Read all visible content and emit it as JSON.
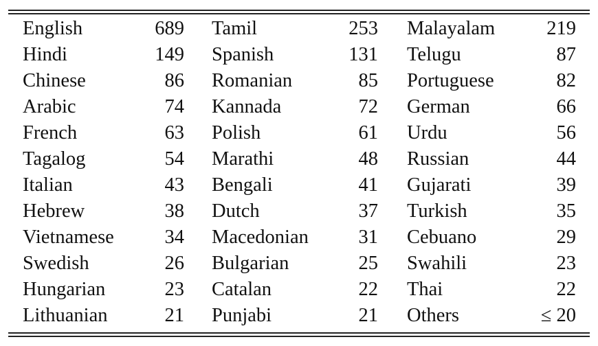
{
  "table": {
    "rows": [
      [
        {
          "lang": "English",
          "count": "689"
        },
        {
          "lang": "Tamil",
          "count": "253"
        },
        {
          "lang": "Malayalam",
          "count": "219"
        }
      ],
      [
        {
          "lang": "Hindi",
          "count": "149"
        },
        {
          "lang": "Spanish",
          "count": "131"
        },
        {
          "lang": "Telugu",
          "count": "87"
        }
      ],
      [
        {
          "lang": "Chinese",
          "count": "86"
        },
        {
          "lang": "Romanian",
          "count": "85"
        },
        {
          "lang": "Portuguese",
          "count": "82"
        }
      ],
      [
        {
          "lang": "Arabic",
          "count": "74"
        },
        {
          "lang": "Kannada",
          "count": "72"
        },
        {
          "lang": "German",
          "count": "66"
        }
      ],
      [
        {
          "lang": "French",
          "count": "63"
        },
        {
          "lang": "Polish",
          "count": "61"
        },
        {
          "lang": "Urdu",
          "count": "56"
        }
      ],
      [
        {
          "lang": "Tagalog",
          "count": "54"
        },
        {
          "lang": "Marathi",
          "count": "48"
        },
        {
          "lang": "Russian",
          "count": "44"
        }
      ],
      [
        {
          "lang": "Italian",
          "count": "43"
        },
        {
          "lang": "Bengali",
          "count": "41"
        },
        {
          "lang": "Gujarati",
          "count": "39"
        }
      ],
      [
        {
          "lang": "Hebrew",
          "count": "38"
        },
        {
          "lang": "Dutch",
          "count": "37"
        },
        {
          "lang": "Turkish",
          "count": "35"
        }
      ],
      [
        {
          "lang": "Vietnamese",
          "count": "34"
        },
        {
          "lang": "Macedonian",
          "count": "31"
        },
        {
          "lang": "Cebuano",
          "count": "29"
        }
      ],
      [
        {
          "lang": "Swedish",
          "count": "26"
        },
        {
          "lang": "Bulgarian",
          "count": "25"
        },
        {
          "lang": "Swahili",
          "count": "23"
        }
      ],
      [
        {
          "lang": "Hungarian",
          "count": "23"
        },
        {
          "lang": "Catalan",
          "count": "22"
        },
        {
          "lang": "Thai",
          "count": "22"
        }
      ],
      [
        {
          "lang": "Lithuanian",
          "count": "21"
        },
        {
          "lang": "Punjabi",
          "count": "21"
        },
        {
          "lang": "Others",
          "count": "≤ 20"
        }
      ]
    ]
  }
}
